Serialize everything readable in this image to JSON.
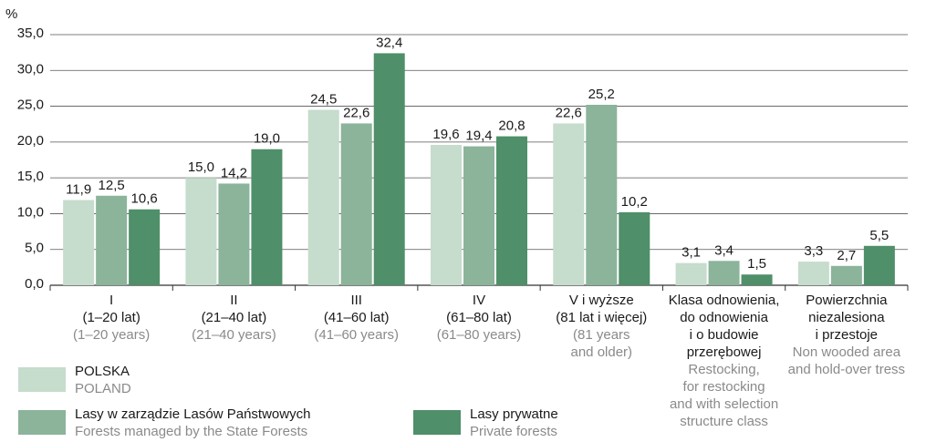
{
  "chart_data": {
    "type": "bar",
    "y_unit": "%",
    "categories": [
      [
        "I",
        "(1–20 lat)"
      ],
      [
        "II",
        "(21–40 lat)"
      ],
      [
        "III",
        "(41–60 lat)"
      ],
      [
        "IV",
        "(61–80 lat)"
      ],
      [
        "V i wyższe",
        "(81 lat i więcej)"
      ],
      [
        "Klasa odnowienia,",
        "do odnowienia",
        "i o budowie",
        "przerębowej"
      ],
      [
        "Powierzchnia",
        "niezalesiona",
        "i przestoje"
      ]
    ],
    "categories_en": [
      [
        "(1–20 years)"
      ],
      [
        "(21–40 years)"
      ],
      [
        "(41–60 years)"
      ],
      [
        "(61–80 years)"
      ],
      [
        "(81 years",
        "and older)"
      ],
      [
        "Restocking,",
        "for restocking",
        "and with selection",
        "structure class"
      ],
      [
        "Non wooded area",
        "and hold-over tress"
      ]
    ],
    "series": [
      {
        "name": "POLSKA",
        "name_en": "POLAND",
        "color": "#c6dccc",
        "values": [
          11.9,
          15.0,
          24.5,
          19.6,
          22.6,
          3.1,
          3.3
        ],
        "value_labels": [
          "11,9",
          "15,0",
          "24,5",
          "19,6",
          "22,6",
          "3,1",
          "3,3"
        ]
      },
      {
        "name": "Lasy w zarządzie Lasów Państwowych",
        "name_en": "Forests managed by the State Forests",
        "color": "#8bb49b",
        "values": [
          12.5,
          14.2,
          22.6,
          19.4,
          25.2,
          3.4,
          2.7
        ],
        "value_labels": [
          "12,5",
          "14,2",
          "22,6",
          "19,4",
          "25,2",
          "3,4",
          "2,7"
        ]
      },
      {
        "name": "Lasy prywatne",
        "name_en": "Private forests",
        "color": "#4f8f69",
        "values": [
          10.6,
          19.0,
          32.4,
          20.8,
          10.2,
          1.5,
          5.5
        ],
        "value_labels": [
          "10,6",
          "19,0",
          "32,4",
          "20,8",
          "10,2",
          "1,5",
          "5,5"
        ]
      }
    ],
    "ylim": [
      0,
      35
    ],
    "yticks": [
      {
        "value": 0,
        "label": "0,0"
      },
      {
        "value": 5,
        "label": "5,0"
      },
      {
        "value": 10,
        "label": "10,0"
      },
      {
        "value": 15,
        "label": "15,0"
      },
      {
        "value": 20,
        "label": "20,0"
      },
      {
        "value": 25,
        "label": "25,0"
      },
      {
        "value": 30,
        "label": "30,0"
      },
      {
        "value": 35,
        "label": "35,0"
      }
    ],
    "grid": true
  }
}
